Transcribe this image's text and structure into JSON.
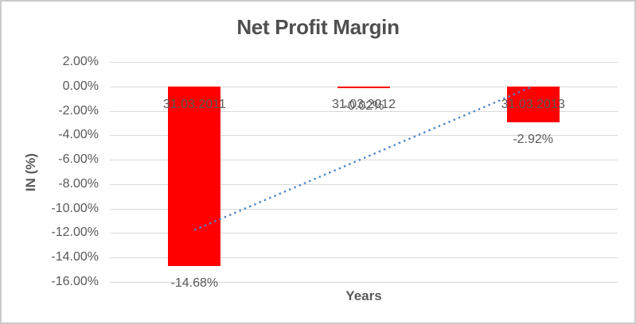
{
  "chart_data": {
    "type": "bar",
    "title": "Net Profit Margin",
    "xlabel": "Years",
    "ylabel": "IN (%)",
    "categories": [
      "31.03.2011",
      "31.03.2012",
      "31.03.2013"
    ],
    "series": [
      {
        "name": "Net Profit Margin",
        "values": [
          -14.68,
          -0.02,
          -2.92
        ]
      }
    ],
    "data_labels": [
      "-14.68%",
      "-0.02%",
      "-2.92%"
    ],
    "y_axis": {
      "ticks": [
        {
          "label": "2.00%",
          "value": 2
        },
        {
          "label": "0.00%",
          "value": 0
        },
        {
          "label": "-2.00%",
          "value": -2
        },
        {
          "label": "-4.00%",
          "value": -4
        },
        {
          "label": "-6.00%",
          "value": -6
        },
        {
          "label": "-8.00%",
          "value": -8
        },
        {
          "label": "-10.00%",
          "value": -10
        },
        {
          "label": "-12.00%",
          "value": -12
        },
        {
          "label": "-14.00%",
          "value": -14
        },
        {
          "label": "-16.00%",
          "value": -16
        }
      ],
      "range": [
        -16,
        2
      ]
    },
    "grid": true,
    "legend": false,
    "trendline": {
      "type": "linear",
      "style": "dotted",
      "values": [
        -11.75,
        0.01
      ]
    },
    "colors": {
      "bar": "#FF0000",
      "trendline": "#4A86C8",
      "gridline": "#D9D9D9",
      "text": "#595959",
      "title_text": "#4F4F4F",
      "chart_border": "#CBCBCB",
      "background": "#FFFFFF"
    }
  }
}
